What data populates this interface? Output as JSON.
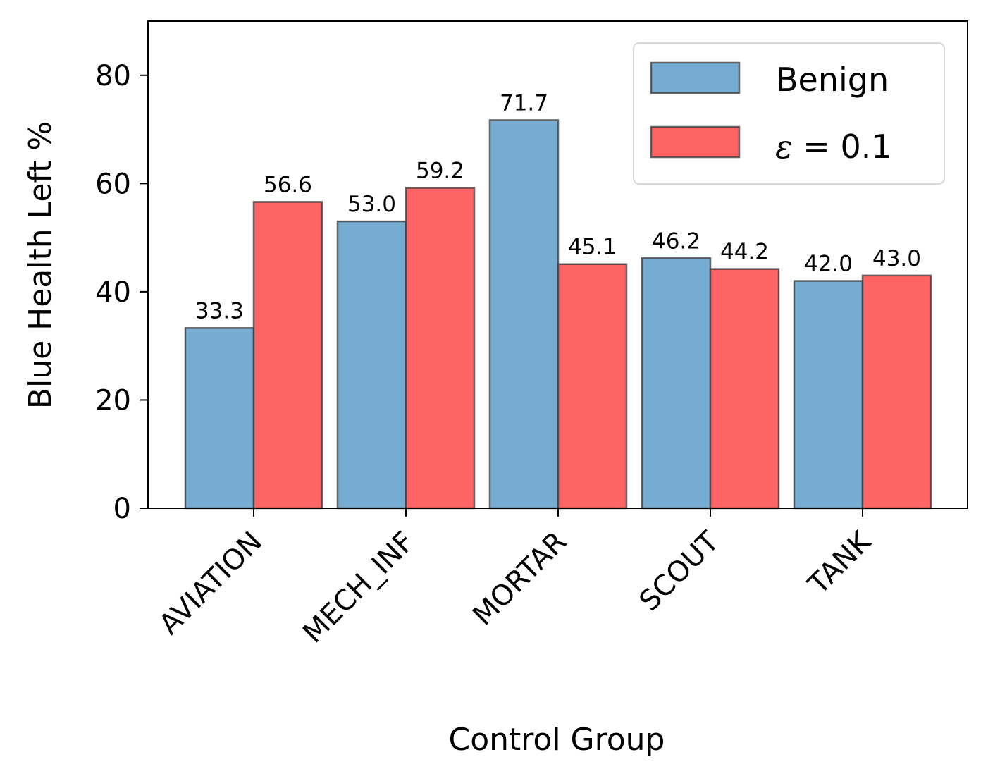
{
  "chart_data": {
    "type": "bar",
    "title": "",
    "xlabel": "Control Group",
    "ylabel": "Blue Health Left %",
    "categories": [
      "AVIATION",
      "MECH_INF",
      "MORTAR",
      "SCOUT",
      "TANK"
    ],
    "series": [
      {
        "name": "Benign",
        "values": [
          33.3,
          53.0,
          71.7,
          46.2,
          42.0
        ],
        "labels": [
          "33.3",
          "53.0",
          "71.7",
          "46.2",
          "42.0"
        ],
        "color": "#77acd2"
      },
      {
        "name": "ε = 0.1",
        "values": [
          56.6,
          59.2,
          45.1,
          44.2,
          43.0
        ],
        "labels": [
          "56.6",
          "59.2",
          "45.1",
          "44.2",
          "43.0"
        ],
        "color": "#ff6464"
      }
    ],
    "ylim": [
      0,
      90
    ],
    "yticks": [
      0,
      20,
      40,
      60,
      80
    ],
    "ytick_labels": [
      "0",
      "20",
      "40",
      "60",
      "80"
    ],
    "grid": false,
    "legend_position": "top-right",
    "legend": {
      "entries": [
        {
          "text": "Benign",
          "color": "#77acd2"
        },
        {
          "text_prefix": "ε",
          "text_suffix": " = 0.1",
          "color": "#ff6464"
        }
      ]
    }
  }
}
